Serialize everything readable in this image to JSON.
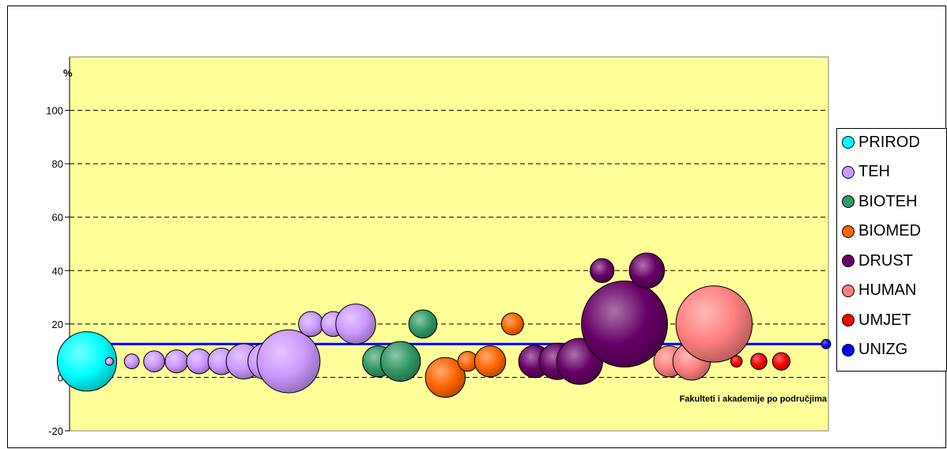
{
  "chart_data": {
    "type": "bubble",
    "title": "",
    "xlabel": "Fakulteti i akademije po područjima",
    "ylabel": "%",
    "ylim": [
      -20,
      120
    ],
    "xlim": [
      0,
      34
    ],
    "yticks": [
      -20,
      0,
      20,
      40,
      60,
      80,
      100
    ],
    "grid": true,
    "grid_style": "dashed",
    "plot_background": "#ffff99",
    "legend_position": "right",
    "reference_line": {
      "series": "UNIZG",
      "y": 12.5,
      "color": "#0000ff"
    },
    "series": [
      {
        "name": "PRIROD",
        "color": "#00ffff",
        "points": [
          {
            "x": 1,
            "y": 6,
            "size": 80
          }
        ]
      },
      {
        "name": "TEH",
        "color": "#cc99ff",
        "points": [
          {
            "x": 2,
            "y": 6,
            "size": 1
          },
          {
            "x": 3,
            "y": 6,
            "size": 5
          },
          {
            "x": 4,
            "y": 6,
            "size": 10
          },
          {
            "x": 5,
            "y": 6,
            "size": 12
          },
          {
            "x": 6,
            "y": 6,
            "size": 14
          },
          {
            "x": 7,
            "y": 6,
            "size": 16
          },
          {
            "x": 8,
            "y": 6,
            "size": 28
          },
          {
            "x": 9,
            "y": 6,
            "size": 30
          },
          {
            "x": 10,
            "y": 6,
            "size": 90
          },
          {
            "x": 11,
            "y": 20,
            "size": 14
          },
          {
            "x": 12,
            "y": 20,
            "size": 14
          },
          {
            "x": 13,
            "y": 20,
            "size": 36
          }
        ]
      },
      {
        "name": "BIOTEH",
        "color": "#339966",
        "points": [
          {
            "x": 14,
            "y": 6,
            "size": 22
          },
          {
            "x": 15,
            "y": 6,
            "size": 36
          },
          {
            "x": 16,
            "y": 20,
            "size": 18
          }
        ]
      },
      {
        "name": "BIOMED",
        "color": "#ff6600",
        "points": [
          {
            "x": 17,
            "y": 0,
            "size": 36
          },
          {
            "x": 18,
            "y": 6,
            "size": 9
          },
          {
            "x": 19,
            "y": 6,
            "size": 22
          },
          {
            "x": 20,
            "y": 20,
            "size": 11
          }
        ]
      },
      {
        "name": "DRUST",
        "color": "#660066",
        "points": [
          {
            "x": 21,
            "y": 6,
            "size": 24
          },
          {
            "x": 22,
            "y": 6,
            "size": 30
          },
          {
            "x": 23,
            "y": 6,
            "size": 48
          },
          {
            "x": 24,
            "y": 40,
            "size": 13
          },
          {
            "x": 25,
            "y": 20,
            "size": 168
          },
          {
            "x": 26,
            "y": 40,
            "size": 28
          }
        ]
      },
      {
        "name": "HUMAN",
        "color": "#ff8080",
        "points": [
          {
            "x": 27,
            "y": 6,
            "size": 22
          },
          {
            "x": 28,
            "y": 6,
            "size": 32
          },
          {
            "x": 29,
            "y": 20,
            "size": 132
          }
        ]
      },
      {
        "name": "UMJET",
        "color": "#ff0000",
        "points": [
          {
            "x": 30,
            "y": 6,
            "size": 3
          },
          {
            "x": 31,
            "y": 6,
            "size": 6
          },
          {
            "x": 32,
            "y": 6,
            "size": 7
          }
        ]
      },
      {
        "name": "UNIZG",
        "color": "#0000ff",
        "points": [
          {
            "x": 34,
            "y": 12.5,
            "size": 2
          }
        ]
      }
    ]
  }
}
